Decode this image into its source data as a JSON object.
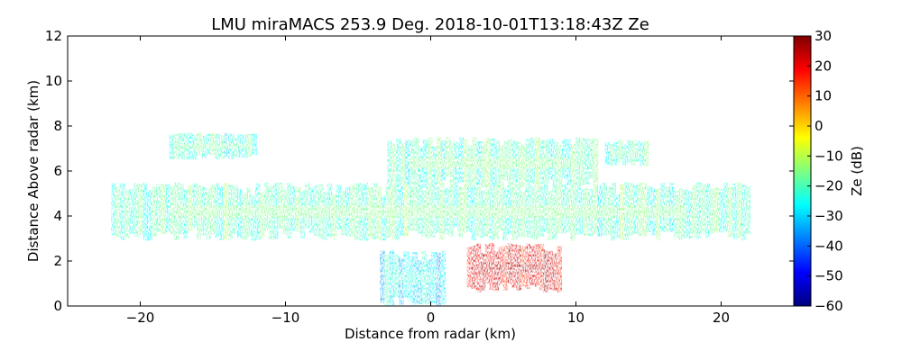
{
  "chart_data": {
    "type": "heatmap",
    "title": "LMU miraMACS 253.9 Deg. 2018-10-01T13:18:43Z  Ze",
    "xlabel": "Distance from radar (km)",
    "ylabel": "Distance Above radar  (km)",
    "xlim": [
      -25,
      25
    ],
    "ylim": [
      0,
      12
    ],
    "x_ticks": [
      -20,
      -10,
      0,
      10,
      20
    ],
    "x_tick_labels": [
      "−20",
      "−10",
      "0",
      "10",
      "20"
    ],
    "y_ticks": [
      0,
      2,
      4,
      6,
      8,
      10,
      12
    ],
    "y_tick_labels": [
      "0",
      "2",
      "4",
      "6",
      "8",
      "10",
      "12"
    ],
    "colorbar": {
      "label": "Ze (dB)",
      "colormap": "jet",
      "range": [
        -60,
        30
      ],
      "ticks": [
        -60,
        -50,
        -40,
        -30,
        -20,
        -10,
        0,
        10,
        20,
        30
      ],
      "tick_labels": [
        "−60",
        "−50",
        "−40",
        "−30",
        "−20",
        "−10",
        "0",
        "10",
        "20",
        "30"
      ],
      "colors": [
        "#00007f",
        "#0000ff",
        "#007fff",
        "#00ffff",
        "#7fff7f",
        "#ffff00",
        "#ff7f00",
        "#ff0000",
        "#7f0000"
      ]
    },
    "regions": [
      {
        "name": "main-cloud-layer",
        "x_range": [
          -22,
          22
        ],
        "y_range": [
          2.9,
          5.5
        ],
        "ze_dB": -20
      },
      {
        "name": "upper-cloud-layer",
        "x_range": [
          -3,
          11.5
        ],
        "y_range": [
          5.2,
          7.5
        ],
        "ze_dB": -20
      },
      {
        "name": "upper-left-fragment",
        "x_range": [
          -18,
          -12
        ],
        "y_range": [
          6.5,
          7.7
        ],
        "ze_dB": -22
      },
      {
        "name": "upper-right-fragment",
        "x_range": [
          12,
          15
        ],
        "y_range": [
          6.2,
          7.4
        ],
        "ze_dB": -22
      },
      {
        "name": "low-cloud-left",
        "x_range": [
          -3.5,
          1
        ],
        "y_range": [
          0,
          2.5
        ],
        "ze_dB": -28
      },
      {
        "name": "precipitation-core",
        "x_range": [
          2.5,
          9
        ],
        "y_range": [
          0.6,
          2.8
        ],
        "ze_dB": 20
      }
    ]
  }
}
